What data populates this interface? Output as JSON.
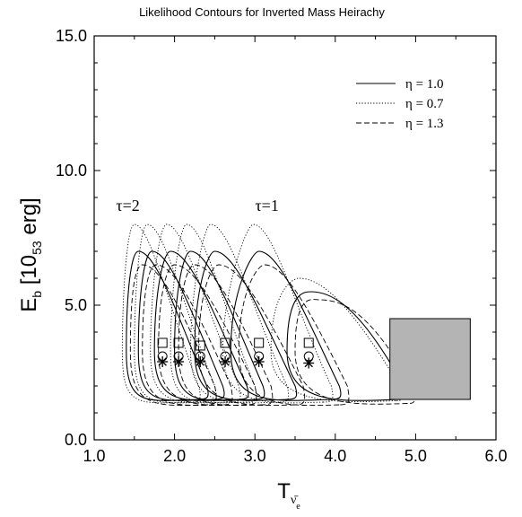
{
  "chart_data": {
    "type": "line",
    "title": "Likelihood Contours for Inverted Mass Heirachy",
    "xlabel": {
      "main": "T",
      "sub": "ν̄",
      "subsub": "e"
    },
    "ylabel": {
      "main": "E",
      "sub": "b",
      "rest": " [10",
      "exp": "53",
      "unit": " erg]"
    },
    "xlim": [
      1.0,
      6.0
    ],
    "ylim": [
      0.0,
      15.0
    ],
    "x_ticks": [
      "1.0",
      "2.0",
      "3.0",
      "4.0",
      "5.0",
      "6.0"
    ],
    "y_ticks": [
      "0.0",
      "5.0",
      "10.0",
      "15.0"
    ],
    "legend_position": "top-right",
    "series": [
      {
        "name": "η = 1.0",
        "style": "solid"
      },
      {
        "name": "η = 0.7",
        "style": "dotted"
      },
      {
        "name": "η = 1.3",
        "style": "dashed"
      }
    ],
    "annotations": [
      {
        "text": "τ=2",
        "x": 1.42,
        "y": 8.5
      },
      {
        "text": "τ=1",
        "x": 3.15,
        "y": 8.5
      }
    ],
    "contours": [
      {
        "solid": {
          "left": 1.4,
          "right": 2.4,
          "top_x": 1.55,
          "top_y": 7.0,
          "bot_x": 2.3,
          "bot_y": 1.5
        },
        "dotted": {
          "left": 1.35,
          "right": 2.3,
          "top_x": 1.5,
          "top_y": 8.0,
          "bot_x": 2.2,
          "bot_y": 1.4
        },
        "dashed": {
          "left": 1.45,
          "right": 2.5,
          "top_x": 1.6,
          "top_y": 6.5,
          "bot_x": 2.4,
          "bot_y": 1.3
        }
      },
      {
        "solid": {
          "left": 1.55,
          "right": 2.6,
          "top_x": 1.72,
          "top_y": 7.0,
          "bot_x": 2.5,
          "bot_y": 1.5
        },
        "dotted": {
          "left": 1.5,
          "right": 2.5,
          "top_x": 1.66,
          "top_y": 8.0,
          "bot_x": 2.4,
          "bot_y": 1.4
        },
        "dashed": {
          "left": 1.6,
          "right": 2.7,
          "top_x": 1.77,
          "top_y": 6.5,
          "bot_x": 2.6,
          "bot_y": 1.3
        }
      },
      {
        "solid": {
          "left": 1.75,
          "right": 2.9,
          "top_x": 1.95,
          "top_y": 7.0,
          "bot_x": 2.8,
          "bot_y": 1.5
        },
        "dotted": {
          "left": 1.7,
          "right": 2.8,
          "top_x": 1.9,
          "top_y": 8.0,
          "bot_x": 2.7,
          "bot_y": 1.4
        },
        "dashed": {
          "left": 1.8,
          "right": 3.0,
          "top_x": 2.0,
          "top_y": 6.5,
          "bot_x": 2.9,
          "bot_y": 1.3
        }
      },
      {
        "solid": {
          "left": 2.0,
          "right": 3.1,
          "top_x": 2.2,
          "top_y": 7.0,
          "bot_x": 3.0,
          "bot_y": 1.5
        },
        "dotted": {
          "left": 1.95,
          "right": 3.0,
          "top_x": 2.15,
          "top_y": 8.0,
          "bot_x": 2.9,
          "bot_y": 1.4
        },
        "dashed": {
          "left": 2.05,
          "right": 3.2,
          "top_x": 2.25,
          "top_y": 6.5,
          "bot_x": 3.1,
          "bot_y": 1.3
        }
      },
      {
        "solid": {
          "left": 2.25,
          "right": 3.5,
          "top_x": 2.5,
          "top_y": 7.0,
          "bot_x": 3.4,
          "bot_y": 1.5
        },
        "dotted": {
          "left": 2.2,
          "right": 3.4,
          "top_x": 2.45,
          "top_y": 8.0,
          "bot_x": 3.3,
          "bot_y": 1.4
        },
        "dashed": {
          "left": 2.3,
          "right": 3.6,
          "top_x": 2.55,
          "top_y": 6.5,
          "bot_x": 3.5,
          "bot_y": 1.3
        }
      },
      {
        "solid": {
          "left": 2.7,
          "right": 4.05,
          "top_x": 3.05,
          "top_y": 7.0,
          "bot_x": 3.95,
          "bot_y": 1.5
        },
        "dotted": {
          "left": 2.6,
          "right": 3.95,
          "top_x": 2.98,
          "top_y": 8.0,
          "bot_x": 3.85,
          "bot_y": 1.4
        },
        "dashed": {
          "left": 2.8,
          "right": 4.15,
          "top_x": 3.12,
          "top_y": 6.5,
          "bot_x": 4.05,
          "bot_y": 1.3
        }
      },
      {
        "solid": {
          "left": 3.4,
          "right": 4.85,
          "top_x": 3.7,
          "top_y": 5.5,
          "bot_x": 4.8,
          "bot_y": 1.5
        },
        "dotted": {
          "left": 3.2,
          "right": 4.8,
          "top_x": 3.55,
          "top_y": 6.0,
          "bot_x": 4.75,
          "bot_y": 1.45
        },
        "dashed": {
          "left": 3.5,
          "right": 4.95,
          "top_x": 3.8,
          "top_y": 5.2,
          "bot_x": 4.9,
          "bot_y": 1.35
        }
      }
    ],
    "markers": [
      {
        "x": 1.85,
        "square_y": 3.6,
        "circle_y": 3.1,
        "star_y": 2.9
      },
      {
        "x": 2.05,
        "square_y": 3.6,
        "circle_y": 3.1,
        "star_y": 2.9
      },
      {
        "x": 2.32,
        "square_y": 3.5,
        "circle_y": 3.1,
        "star_y": 2.9
      },
      {
        "x": 2.63,
        "square_y": 3.6,
        "circle_y": 3.1,
        "star_y": 2.9
      },
      {
        "x": 3.05,
        "square_y": 3.6,
        "circle_y": 3.1,
        "star_y": 2.9
      },
      {
        "x": 3.67,
        "square_y": 3.6,
        "circle_y": 3.1,
        "star_y": 2.85
      }
    ],
    "shaded_region": {
      "x": [
        4.68,
        5.68
      ],
      "y": [
        1.5,
        4.5
      ],
      "color": "#b4b4b4"
    }
  }
}
